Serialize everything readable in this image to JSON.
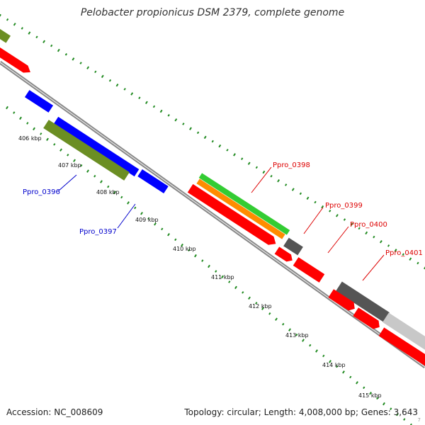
{
  "title": "Pelobacter propionicus DSM 2379, complete genome",
  "footer": {
    "accession": "Accession: NC_008609",
    "summary": "Topology: circular; Length: 4,008,000 bp; Genes: 3,643",
    "corner_mark": "7"
  },
  "scale_ticks": [
    "406 kbp",
    "407 kbp",
    "408 kbp",
    "409 kbp",
    "410 kbp",
    "411 kbp",
    "412 kbp",
    "413 kbp",
    "414 kbp",
    "415 kbp"
  ],
  "gene_labels": [
    {
      "text": "Ppro_0396",
      "color": "#0000cc"
    },
    {
      "text": "Ppro_0397",
      "color": "#0000cc"
    },
    {
      "text": "Ppro_0398",
      "color": "#dd0000"
    },
    {
      "text": "Ppro_0399",
      "color": "#dd0000"
    },
    {
      "text": "Ppro_0400",
      "color": "#dd0000"
    },
    {
      "text": "Ppro_0401",
      "color": "#dd0000"
    }
  ],
  "feature_colors": {
    "red": "#ff0000",
    "blue": "#0000ff",
    "olive": "#6b8e23",
    "green": "#33cc33",
    "orange": "#ff8c00",
    "dark_gray": "#555555",
    "light_gray": "#c8c8c8",
    "backbone": "#888888",
    "dots": "#228b22"
  }
}
